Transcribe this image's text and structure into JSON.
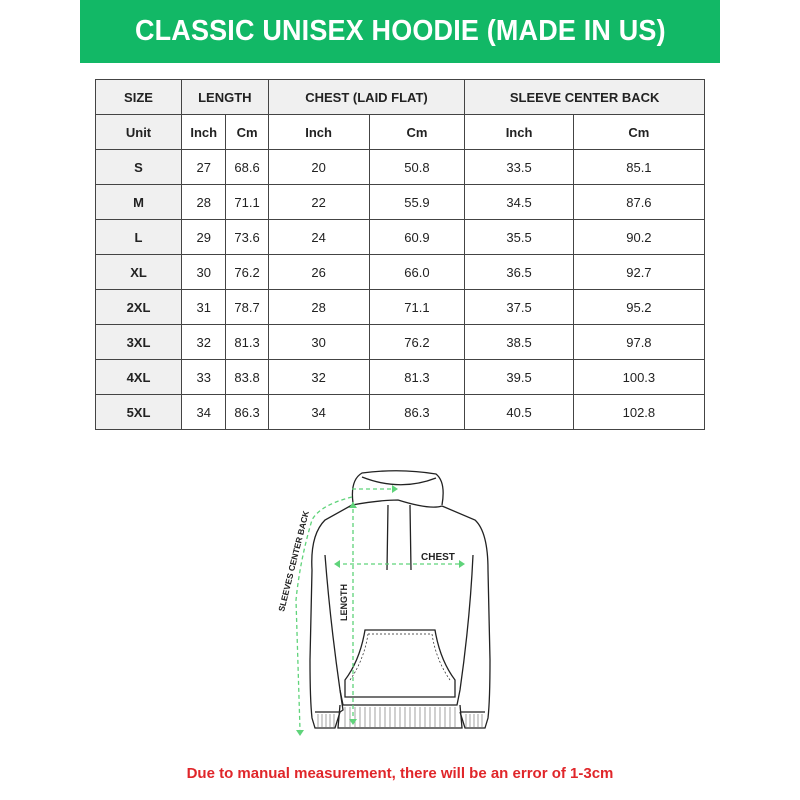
{
  "title": "CLASSIC UNISEX HOODIE (MADE IN US)",
  "colors": {
    "banner": "#12b866",
    "measure_line": "#5fd37a",
    "note": "#e0262a"
  },
  "table": {
    "groups": [
      "SIZE",
      "LENGTH",
      "CHEST (LAID FLAT)",
      "SLEEVE CENTER BACK"
    ],
    "units": [
      "Unit",
      "Inch",
      "Cm",
      "Inch",
      "Cm",
      "Inch",
      "Cm"
    ],
    "rows": [
      [
        "S",
        "27",
        "68.6",
        "20",
        "50.8",
        "33.5",
        "85.1"
      ],
      [
        "M",
        "28",
        "71.1",
        "22",
        "55.9",
        "34.5",
        "87.6"
      ],
      [
        "L",
        "29",
        "73.6",
        "24",
        "60.9",
        "35.5",
        "90.2"
      ],
      [
        "XL",
        "30",
        "76.2",
        "26",
        "66.0",
        "36.5",
        "92.7"
      ],
      [
        "2XL",
        "31",
        "78.7",
        "28",
        "71.1",
        "37.5",
        "95.2"
      ],
      [
        "3XL",
        "32",
        "81.3",
        "30",
        "76.2",
        "38.5",
        "97.8"
      ],
      [
        "4XL",
        "33",
        "83.8",
        "32",
        "81.3",
        "39.5",
        "100.3"
      ],
      [
        "5XL",
        "34",
        "86.3",
        "34",
        "86.3",
        "40.5",
        "102.8"
      ]
    ]
  },
  "diagram": {
    "chest_label": "CHEST",
    "length_label": "LENGTH",
    "sleeve_label": "SLEEVES CENTER BACK"
  },
  "note": "Due to manual measurement, there will be an error of 1-3cm"
}
